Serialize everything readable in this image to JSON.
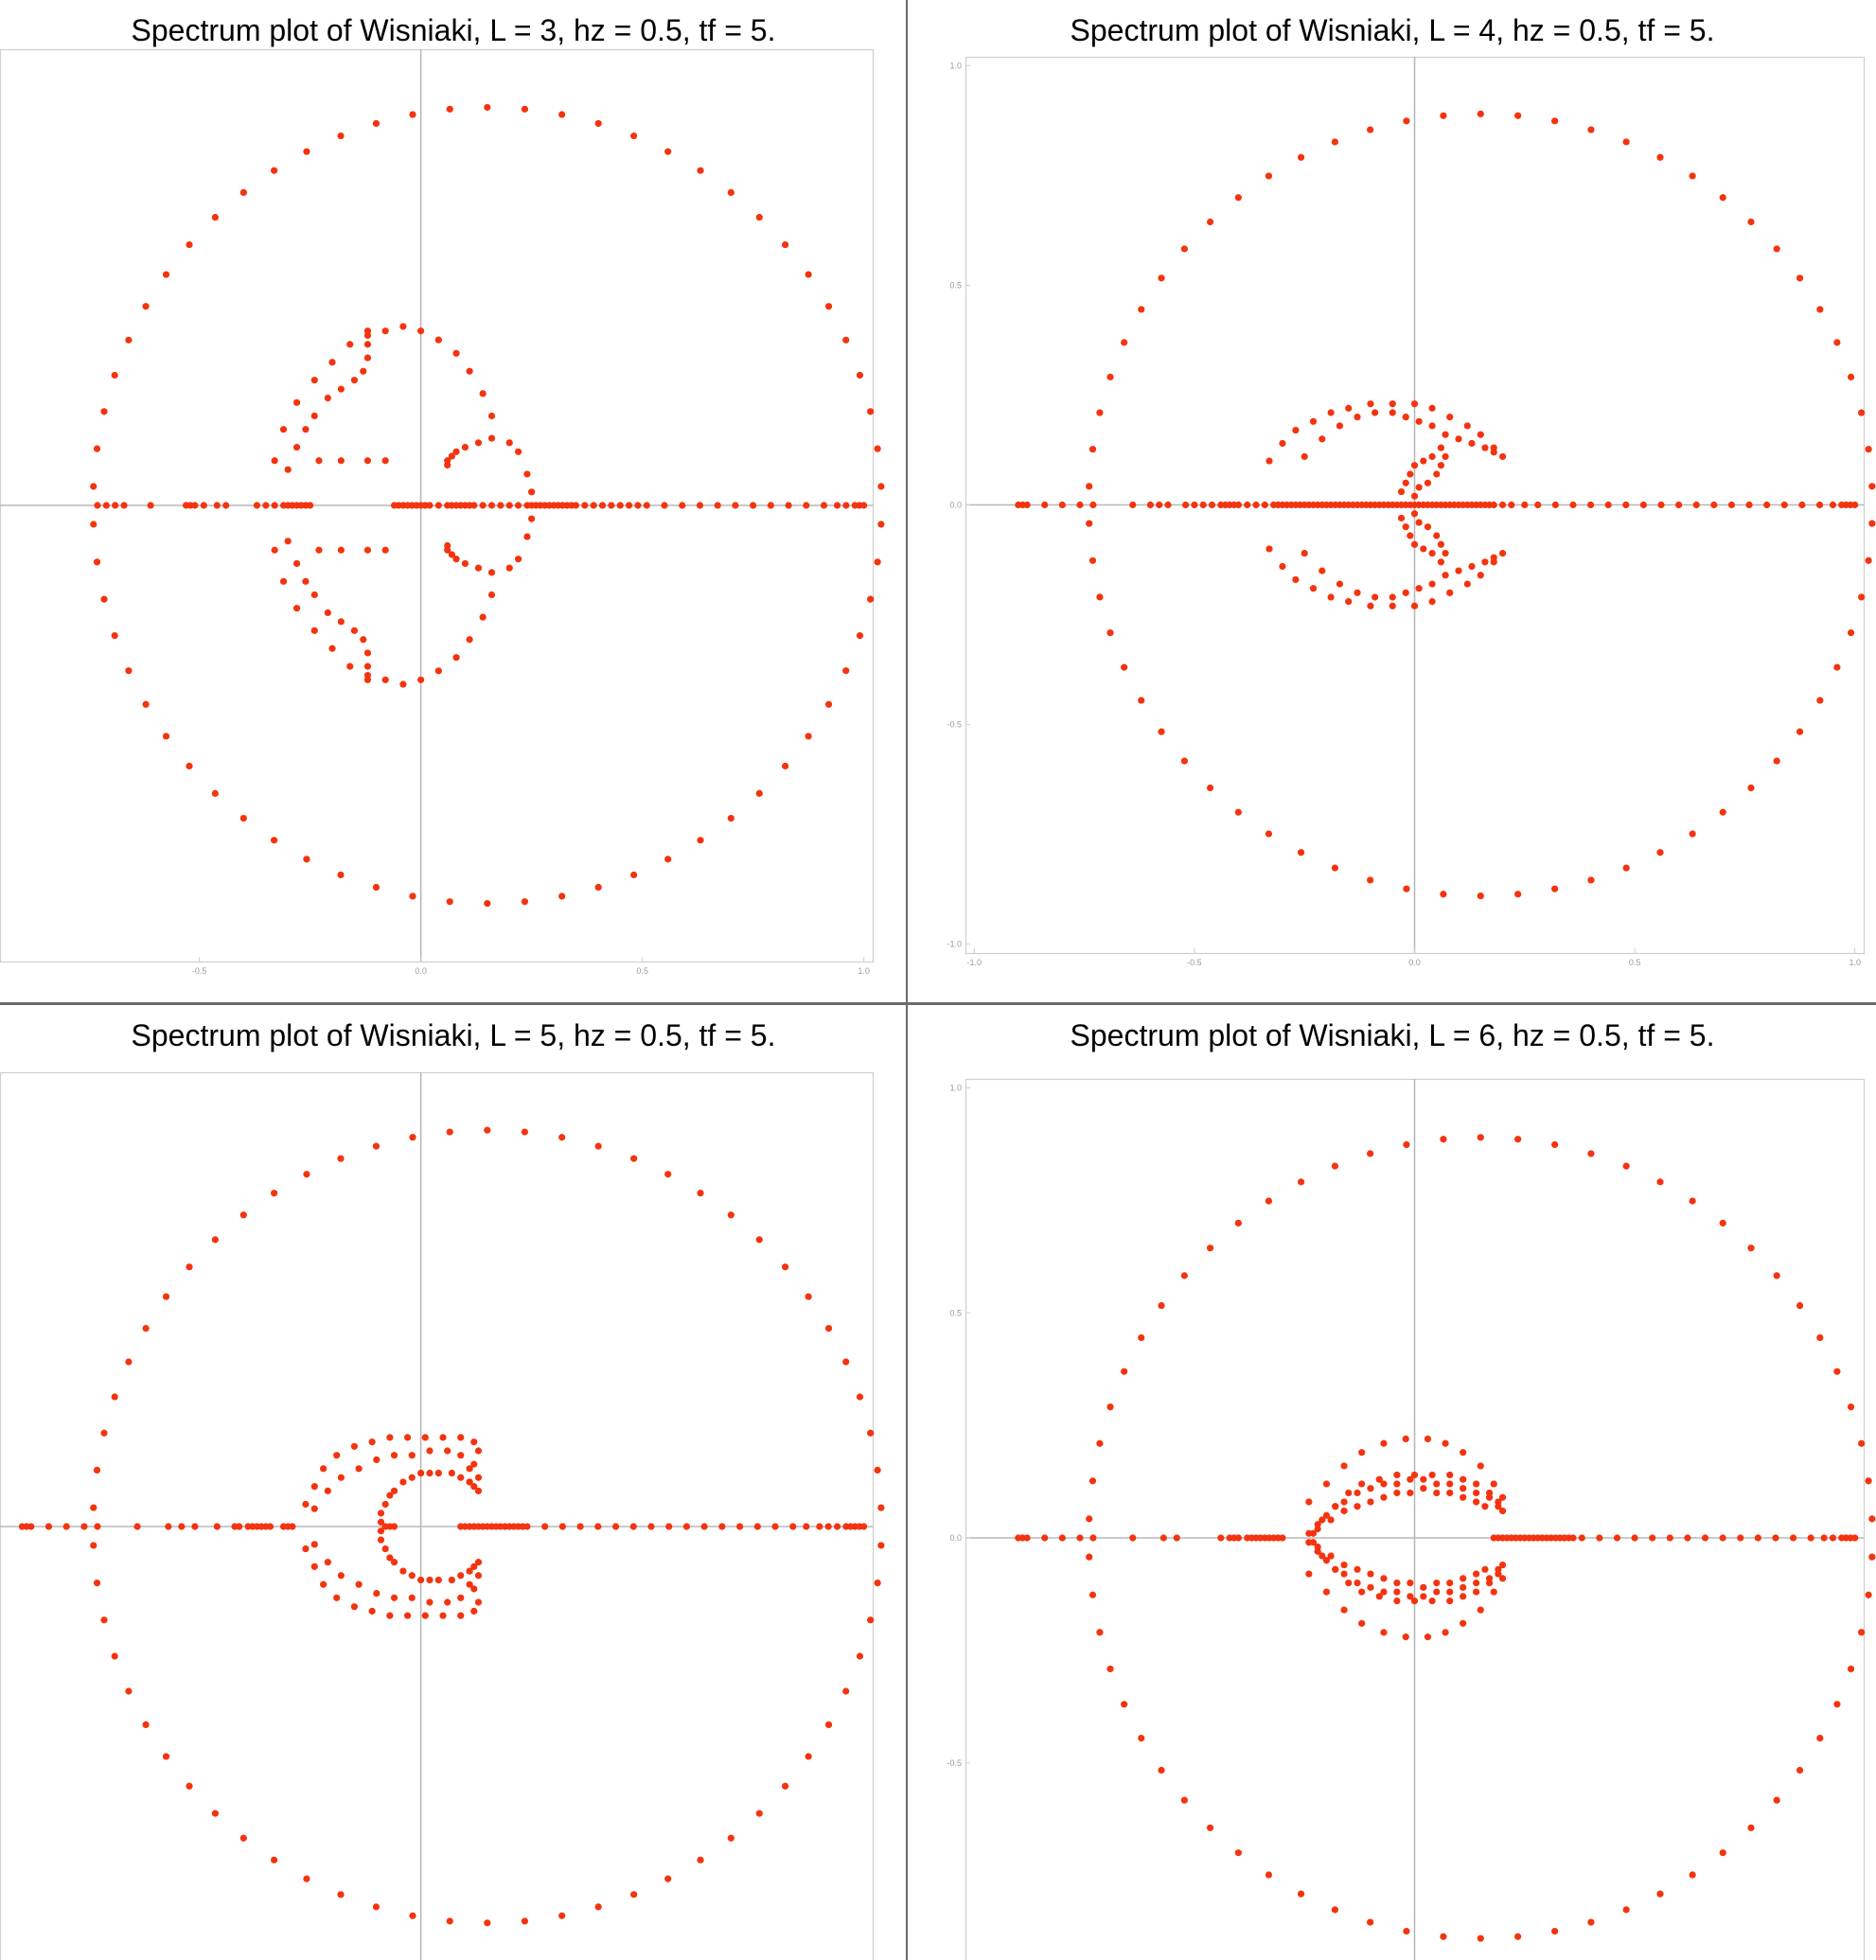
{
  "colors": {
    "point": "#f4330f",
    "axis": "#b8b8b8",
    "frame": "#cfcfcf",
    "tick_label": "#9a9a9a",
    "divider": "#6b6b6b"
  },
  "chart_data": [
    {
      "type": "scatter",
      "title": "Spectrum plot of Wisniaki, L = 3, hz = 0.5, tf = 5.",
      "xlim": [
        -0.95,
        1.02
      ],
      "ylim": [
        -1.02,
        1.02
      ],
      "x_ticks": [
        "-0.5",
        "0.0",
        "0.5",
        "1.0"
      ],
      "y_ticks": [],
      "outer_ring": {
        "center": [
          0.15,
          0.0
        ],
        "radius": 0.89,
        "count": 66
      },
      "real_axis_points": [
        -0.73,
        -0.71,
        -0.69,
        -0.67,
        -0.61,
        -0.53,
        -0.52,
        -0.51,
        -0.49,
        -0.46,
        -0.44,
        -0.37,
        -0.35,
        -0.33,
        -0.31,
        -0.3,
        -0.29,
        -0.28,
        -0.27,
        -0.26,
        -0.25,
        -0.06,
        -0.05,
        -0.04,
        -0.03,
        -0.02,
        -0.01,
        0.0,
        0.01,
        0.02,
        0.04,
        0.06,
        0.07,
        0.08,
        0.09,
        0.1,
        0.11,
        0.12,
        0.14,
        0.16,
        0.18,
        0.2,
        0.22,
        0.24,
        0.25,
        0.26,
        0.27,
        0.28,
        0.29,
        0.3,
        0.31,
        0.32,
        0.33,
        0.34,
        0.35,
        0.37,
        0.39,
        0.41,
        0.43,
        0.45,
        0.47,
        0.49,
        0.51,
        0.55,
        0.59,
        0.63,
        0.67,
        0.71,
        0.75,
        0.79,
        0.83,
        0.87,
        0.91,
        0.94,
        0.96,
        0.98,
        0.99,
        1.0
      ],
      "complex_points": [
        [
          -0.33,
          0.1
        ],
        [
          -0.31,
          0.17
        ],
        [
          -0.28,
          0.23
        ],
        [
          -0.24,
          0.28
        ],
        [
          -0.2,
          0.32
        ],
        [
          -0.16,
          0.36
        ],
        [
          -0.12,
          0.38
        ],
        [
          -0.08,
          0.39
        ],
        [
          -0.04,
          0.4
        ],
        [
          0.0,
          0.39
        ],
        [
          0.04,
          0.37
        ],
        [
          0.08,
          0.34
        ],
        [
          0.11,
          0.3
        ],
        [
          0.14,
          0.25
        ],
        [
          0.16,
          0.2
        ],
        [
          -0.3,
          0.08
        ],
        [
          -0.28,
          0.13
        ],
        [
          -0.26,
          0.17
        ],
        [
          -0.24,
          0.2
        ],
        [
          -0.21,
          0.24
        ],
        [
          -0.18,
          0.26
        ],
        [
          -0.15,
          0.28
        ],
        [
          -0.13,
          0.3
        ],
        [
          -0.12,
          0.33
        ],
        [
          -0.12,
          0.36
        ],
        [
          -0.12,
          0.39
        ],
        [
          -0.23,
          0.1
        ],
        [
          -0.18,
          0.1
        ],
        [
          -0.12,
          0.1
        ],
        [
          -0.08,
          0.1
        ],
        [
          0.06,
          0.09
        ],
        [
          0.06,
          0.1
        ],
        [
          0.07,
          0.11
        ],
        [
          0.08,
          0.12
        ],
        [
          0.1,
          0.13
        ],
        [
          0.13,
          0.14
        ],
        [
          0.16,
          0.15
        ],
        [
          0.2,
          0.14
        ],
        [
          0.22,
          0.12
        ],
        [
          0.24,
          0.07
        ],
        [
          0.25,
          0.03
        ]
      ],
      "mirror_complex": true
    },
    {
      "type": "scatter",
      "title": "Spectrum plot of Wisniaki, L = 4, hz = 0.5, tf = 5.",
      "xlim": [
        -1.02,
        1.02
      ],
      "ylim": [
        -1.02,
        1.02
      ],
      "x_ticks": [
        "-1.0",
        "-0.5",
        "0.0",
        "0.5",
        "1.0"
      ],
      "y_ticks": [
        "1.0",
        "0.5",
        "0.0",
        "-0.5",
        "-1.0"
      ],
      "outer_ring": {
        "center": [
          0.15,
          0.0
        ],
        "radius": 0.89,
        "count": 66
      },
      "real_axis_points": [
        -0.9,
        -0.89,
        -0.88,
        -0.84,
        -0.8,
        -0.76,
        -0.73,
        -0.64,
        -0.6,
        -0.58,
        -0.56,
        -0.52,
        -0.5,
        -0.48,
        -0.46,
        -0.44,
        -0.43,
        -0.42,
        -0.41,
        -0.4,
        -0.38,
        -0.36,
        -0.34,
        -0.32,
        -0.31,
        -0.3,
        -0.29,
        -0.28,
        -0.27,
        -0.26,
        -0.25,
        -0.24,
        -0.23,
        -0.22,
        -0.21,
        -0.2,
        -0.19,
        -0.18,
        -0.17,
        -0.16,
        -0.15,
        -0.14,
        -0.13,
        -0.12,
        -0.11,
        -0.1,
        -0.09,
        -0.08,
        -0.07,
        -0.06,
        -0.05,
        -0.04,
        -0.03,
        -0.02,
        -0.01,
        0.0,
        0.01,
        0.02,
        0.03,
        0.04,
        0.05,
        0.06,
        0.07,
        0.08,
        0.09,
        0.1,
        0.11,
        0.12,
        0.13,
        0.14,
        0.15,
        0.16,
        0.17,
        0.18,
        0.2,
        0.22,
        0.25,
        0.28,
        0.32,
        0.36,
        0.4,
        0.44,
        0.48,
        0.52,
        0.56,
        0.6,
        0.64,
        0.68,
        0.72,
        0.76,
        0.8,
        0.84,
        0.88,
        0.92,
        0.95,
        0.97,
        0.98,
        0.99,
        1.0
      ],
      "complex_points": [
        [
          -0.33,
          0.1
        ],
        [
          -0.3,
          0.14
        ],
        [
          -0.27,
          0.17
        ],
        [
          -0.23,
          0.19
        ],
        [
          -0.19,
          0.21
        ],
        [
          -0.15,
          0.22
        ],
        [
          -0.1,
          0.23
        ],
        [
          -0.05,
          0.23
        ],
        [
          0.0,
          0.23
        ],
        [
          0.04,
          0.22
        ],
        [
          0.08,
          0.2
        ],
        [
          0.12,
          0.18
        ],
        [
          0.15,
          0.16
        ],
        [
          0.18,
          0.13
        ],
        [
          0.2,
          0.11
        ],
        [
          -0.25,
          0.11
        ],
        [
          -0.21,
          0.15
        ],
        [
          -0.17,
          0.18
        ],
        [
          -0.13,
          0.2
        ],
        [
          -0.09,
          0.21
        ],
        [
          -0.05,
          0.21
        ],
        [
          -0.02,
          0.2
        ],
        [
          0.01,
          0.19
        ],
        [
          0.04,
          0.18
        ],
        [
          0.07,
          0.16
        ],
        [
          0.1,
          0.15
        ],
        [
          0.13,
          0.14
        ],
        [
          0.16,
          0.13
        ],
        [
          0.18,
          0.12
        ],
        [
          -0.03,
          0.03
        ],
        [
          -0.02,
          0.05
        ],
        [
          -0.01,
          0.07
        ],
        [
          0.0,
          0.09
        ],
        [
          0.02,
          0.1
        ],
        [
          0.04,
          0.11
        ],
        [
          0.06,
          0.13
        ],
        [
          0.07,
          0.11
        ],
        [
          0.06,
          0.09
        ],
        [
          0.05,
          0.07
        ],
        [
          0.03,
          0.05
        ],
        [
          0.01,
          0.04
        ],
        [
          0.0,
          0.02
        ]
      ],
      "mirror_complex": true
    },
    {
      "type": "scatter",
      "title": "Spectrum plot of Wisniaki, L = 5, hz = 0.5, tf = 5.",
      "xlim": [
        -0.95,
        1.02
      ],
      "ylim": [
        -1.02,
        1.02
      ],
      "x_ticks": [],
      "y_ticks": [],
      "outer_ring": {
        "center": [
          0.15,
          0.0
        ],
        "radius": 0.89,
        "count": 66
      },
      "real_axis_points": [
        -0.9,
        -0.89,
        -0.88,
        -0.84,
        -0.8,
        -0.76,
        -0.73,
        -0.64,
        -0.57,
        -0.54,
        -0.51,
        -0.46,
        -0.42,
        -0.41,
        -0.39,
        -0.38,
        -0.37,
        -0.36,
        -0.35,
        -0.34,
        -0.31,
        -0.3,
        -0.29,
        -0.08,
        -0.07,
        -0.06,
        0.09,
        0.1,
        0.11,
        0.12,
        0.13,
        0.14,
        0.15,
        0.16,
        0.17,
        0.18,
        0.19,
        0.2,
        0.21,
        0.22,
        0.23,
        0.24,
        0.28,
        0.32,
        0.36,
        0.4,
        0.44,
        0.48,
        0.52,
        0.56,
        0.6,
        0.64,
        0.68,
        0.72,
        0.76,
        0.8,
        0.84,
        0.87,
        0.9,
        0.92,
        0.94,
        0.96,
        0.97,
        0.98,
        0.99,
        1.0
      ],
      "complex_points": [
        [
          -0.26,
          0.05
        ],
        [
          -0.24,
          0.09
        ],
        [
          -0.22,
          0.13
        ],
        [
          -0.19,
          0.16
        ],
        [
          -0.15,
          0.18
        ],
        [
          -0.11,
          0.19
        ],
        [
          -0.07,
          0.2
        ],
        [
          -0.03,
          0.2
        ],
        [
          0.01,
          0.2
        ],
        [
          0.05,
          0.2
        ],
        [
          0.09,
          0.2
        ],
        [
          0.12,
          0.19
        ],
        [
          0.13,
          0.17
        ],
        [
          0.12,
          0.14
        ],
        [
          0.11,
          0.1
        ],
        [
          -0.24,
          0.04
        ],
        [
          -0.21,
          0.08
        ],
        [
          -0.18,
          0.11
        ],
        [
          -0.14,
          0.13
        ],
        [
          -0.1,
          0.15
        ],
        [
          -0.06,
          0.16
        ],
        [
          -0.02,
          0.16
        ],
        [
          0.02,
          0.17
        ],
        [
          0.06,
          0.17
        ],
        [
          0.09,
          0.16
        ],
        [
          0.11,
          0.13
        ],
        [
          0.13,
          0.11
        ],
        [
          0.13,
          0.08
        ],
        [
          -0.09,
          0.01
        ],
        [
          -0.09,
          0.03
        ],
        [
          -0.08,
          0.05
        ],
        [
          -0.07,
          0.07
        ],
        [
          -0.06,
          0.08
        ],
        [
          -0.04,
          0.1
        ],
        [
          -0.02,
          0.11
        ],
        [
          0.0,
          0.12
        ],
        [
          0.02,
          0.12
        ],
        [
          0.04,
          0.12
        ],
        [
          0.07,
          0.12
        ],
        [
          0.09,
          0.11
        ],
        [
          0.11,
          0.1
        ],
        [
          0.12,
          0.09
        ]
      ],
      "mirror_complex": true
    },
    {
      "type": "scatter",
      "title": "Spectrum plot of Wisniaki, L = 6, hz = 0.5, tf = 5.",
      "xlim": [
        -1.02,
        1.02
      ],
      "ylim": [
        -0.98,
        1.02
      ],
      "x_ticks": [],
      "y_ticks": [
        "1.0",
        "0.5",
        "0.0",
        "-0.5"
      ],
      "outer_ring": {
        "center": [
          0.15,
          0.0
        ],
        "radius": 0.89,
        "count": 66
      },
      "real_axis_points": [
        -0.9,
        -0.89,
        -0.88,
        -0.84,
        -0.8,
        -0.76,
        -0.73,
        -0.64,
        -0.57,
        -0.54,
        -0.44,
        -0.42,
        -0.41,
        -0.4,
        -0.38,
        -0.37,
        -0.36,
        -0.35,
        -0.34,
        -0.33,
        -0.32,
        -0.31,
        -0.3,
        0.18,
        0.19,
        0.2,
        0.21,
        0.22,
        0.23,
        0.24,
        0.25,
        0.26,
        0.27,
        0.28,
        0.29,
        0.3,
        0.31,
        0.32,
        0.33,
        0.34,
        0.35,
        0.36,
        0.38,
        0.42,
        0.46,
        0.5,
        0.54,
        0.58,
        0.62,
        0.66,
        0.7,
        0.74,
        0.78,
        0.82,
        0.86,
        0.9,
        0.93,
        0.95,
        0.97,
        0.98,
        0.99,
        1.0
      ],
      "complex_points": [
        [
          -0.24,
          0.08
        ],
        [
          -0.2,
          0.12
        ],
        [
          -0.16,
          0.16
        ],
        [
          -0.12,
          0.19
        ],
        [
          -0.07,
          0.21
        ],
        [
          -0.02,
          0.22
        ],
        [
          0.03,
          0.22
        ],
        [
          0.07,
          0.21
        ],
        [
          0.11,
          0.19
        ],
        [
          0.15,
          0.16
        ],
        [
          0.18,
          0.12
        ],
        [
          0.2,
          0.09
        ],
        [
          -0.21,
          0.04
        ],
        [
          -0.18,
          0.07
        ],
        [
          -0.15,
          0.1
        ],
        [
          -0.12,
          0.12
        ],
        [
          -0.08,
          0.13
        ],
        [
          -0.04,
          0.14
        ],
        [
          0.0,
          0.14
        ],
        [
          0.04,
          0.14
        ],
        [
          0.08,
          0.14
        ],
        [
          0.11,
          0.13
        ],
        [
          0.14,
          0.12
        ],
        [
          0.17,
          0.1
        ],
        [
          0.19,
          0.08
        ],
        [
          0.2,
          0.06
        ],
        [
          -0.23,
          0.01
        ],
        [
          -0.22,
          0.03
        ],
        [
          -0.2,
          0.05
        ],
        [
          -0.18,
          0.07
        ],
        [
          -0.16,
          0.08
        ],
        [
          -0.13,
          0.1
        ],
        [
          -0.1,
          0.11
        ],
        [
          -0.07,
          0.12
        ],
        [
          -0.04,
          0.12
        ],
        [
          -0.01,
          0.13
        ],
        [
          0.02,
          0.13
        ],
        [
          0.05,
          0.12
        ],
        [
          0.08,
          0.12
        ],
        [
          0.11,
          0.11
        ],
        [
          0.14,
          0.1
        ],
        [
          0.17,
          0.09
        ],
        [
          0.19,
          0.07
        ],
        [
          -0.24,
          0.01
        ],
        [
          -0.22,
          0.02
        ],
        [
          -0.19,
          0.04
        ],
        [
          -0.16,
          0.06
        ],
        [
          -0.13,
          0.07
        ],
        [
          -0.1,
          0.08
        ],
        [
          -0.07,
          0.09
        ],
        [
          -0.04,
          0.1
        ],
        [
          -0.01,
          0.1
        ],
        [
          0.02,
          0.11
        ],
        [
          0.05,
          0.1
        ],
        [
          0.08,
          0.1
        ],
        [
          0.11,
          0.09
        ],
        [
          0.14,
          0.08
        ],
        [
          0.16,
          0.07
        ]
      ],
      "mirror_complex": true
    }
  ]
}
